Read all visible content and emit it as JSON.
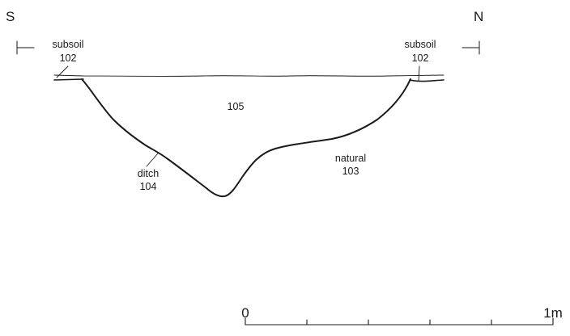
{
  "orientation": {
    "left": "S",
    "right": "N"
  },
  "labels": {
    "subsoil_left": {
      "name": "subsoil",
      "number": "102"
    },
    "subsoil_right": {
      "name": "subsoil",
      "number": "102"
    },
    "fill": {
      "number": "105"
    },
    "ditch": {
      "name": "ditch",
      "number": "104"
    },
    "natural": {
      "name": "natural",
      "number": "103"
    }
  },
  "scale_bar": {
    "start_label": "0",
    "end_label": "1m",
    "divisions": 5
  }
}
